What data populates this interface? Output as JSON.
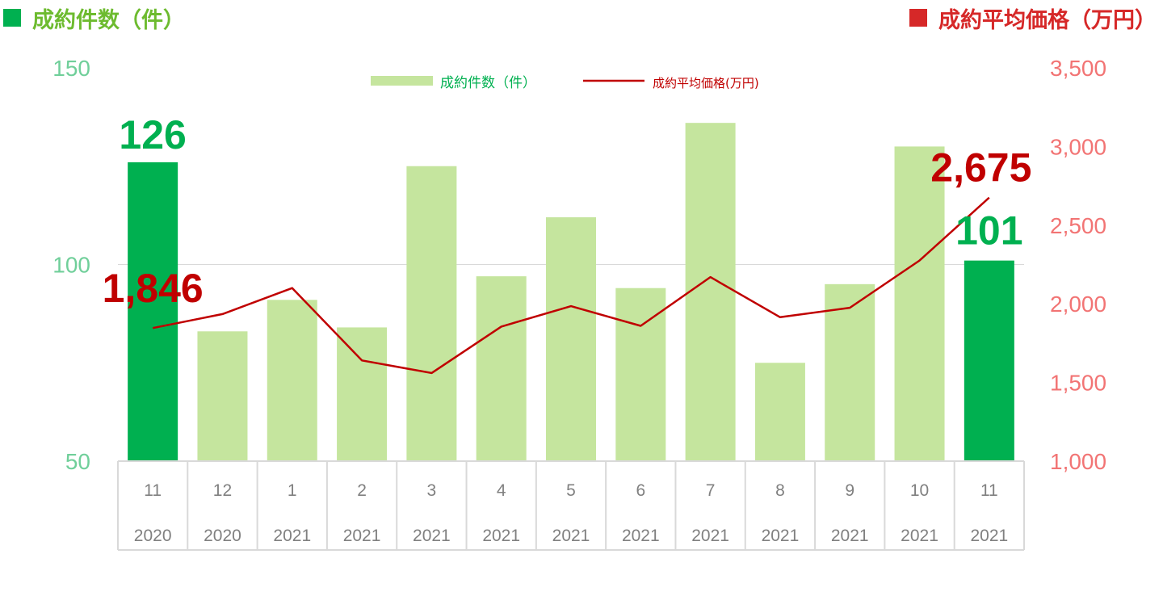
{
  "headers": {
    "left_label": "成約件数（件）",
    "right_label": "成約平均価格（万円）"
  },
  "colors": {
    "bar_light": "#c5e59e",
    "bar_highlight": "#00b050",
    "left_header": "#6dbb2f",
    "left_axis": "#70cf9a",
    "right_axis": "#f27474",
    "right_header": "#d62828",
    "line": "#c00000",
    "label_green": "#00b050",
    "label_red": "#c00000",
    "grid": "#d9d9d9",
    "tick_text": "#808080",
    "legend_bar_text": "#00b050",
    "legend_line_text": "#c00000"
  },
  "chart_data": {
    "type": "bar",
    "categories": [
      {
        "month": "11",
        "year": "2020"
      },
      {
        "month": "12",
        "year": "2020"
      },
      {
        "month": "1",
        "year": "2021"
      },
      {
        "month": "2",
        "year": "2021"
      },
      {
        "month": "3",
        "year": "2021"
      },
      {
        "month": "4",
        "year": "2021"
      },
      {
        "month": "5",
        "year": "2021"
      },
      {
        "month": "6",
        "year": "2021"
      },
      {
        "month": "7",
        "year": "2021"
      },
      {
        "month": "8",
        "year": "2021"
      },
      {
        "month": "9",
        "year": "2021"
      },
      {
        "month": "10",
        "year": "2021"
      },
      {
        "month": "11",
        "year": "2021"
      }
    ],
    "series": [
      {
        "name": "成約件数（件）",
        "type": "bar",
        "axis": "left",
        "values": [
          126,
          83,
          91,
          84,
          125,
          97,
          112,
          94,
          136,
          75,
          95,
          130,
          101
        ],
        "highlight_indices": [
          0,
          12
        ]
      },
      {
        "name": "成約平均価格(万円)",
        "type": "line",
        "axis": "right",
        "values": [
          1846,
          1935,
          2100,
          1640,
          1560,
          1855,
          1985,
          1860,
          2170,
          1915,
          1975,
          2275,
          2675
        ]
      }
    ],
    "left_axis": {
      "min": 50,
      "max": 150,
      "ticks": [
        "50",
        "100",
        "150"
      ]
    },
    "right_axis": {
      "min": 1000,
      "max": 3500,
      "ticks": [
        "1,000",
        "1,500",
        "2,000",
        "2,500",
        "3,000",
        "3,500"
      ]
    },
    "data_labels": {
      "bar_first": "126",
      "bar_last": "101",
      "line_first": "1,846",
      "line_last": "2,675"
    },
    "legend": {
      "position": "top-center"
    },
    "grid": true
  }
}
